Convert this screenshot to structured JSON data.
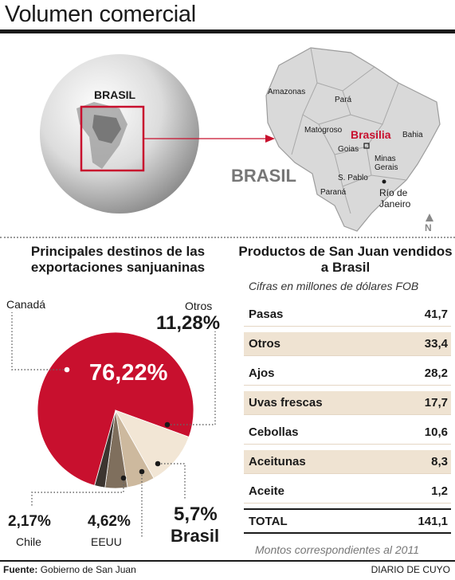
{
  "header": {
    "title": "Volumen comercial"
  },
  "map": {
    "globe_label": "BRASIL",
    "big_label": "BRASIL",
    "capital": "Brasilia",
    "regions": [
      "Amazonas",
      "Pará",
      "Matogroso",
      "Bahia",
      "Goias",
      "Minas Gerais",
      "S. Pablo",
      "Paraná"
    ],
    "city": [
      "Río de",
      "Janeiro"
    ],
    "north": "N",
    "accent": "#c8102e"
  },
  "chart_data": [
    {
      "type": "pie",
      "title": "Principales destinos de las exportaciones sanjuaninas",
      "slices": [
        {
          "name": "Canadá",
          "value": 76.22,
          "label": "76,22%",
          "color": "#c8102e"
        },
        {
          "name": "Otros",
          "value": 11.28,
          "label": "11,28%",
          "color": "#f2e6d5"
        },
        {
          "name": "Brasil",
          "value": 5.7,
          "label": "5,7%",
          "color": "#cdb99e"
        },
        {
          "name": "EEUU",
          "value": 4.62,
          "label": "4,62%",
          "color": "#7f6f5d"
        },
        {
          "name": "Chile",
          "value": 2.17,
          "label": "2,17%",
          "color": "#3c3530"
        }
      ]
    },
    {
      "type": "table",
      "title": "Productos de San Juan vendidos a Brasil",
      "subtitle": "Cifras en millones de dólares FOB",
      "rows": [
        {
          "name": "Pasas",
          "value": "41,7"
        },
        {
          "name": "Otros",
          "value": "33,4"
        },
        {
          "name": "Ajos",
          "value": "28,2"
        },
        {
          "name": "Uvas frescas",
          "value": "17,7"
        },
        {
          "name": "Cebollas",
          "value": "10,6"
        },
        {
          "name": "Aceitunas",
          "value": "8,3"
        },
        {
          "name": "Aceite",
          "value": "1,2"
        }
      ],
      "total": {
        "name": "TOTAL",
        "value": "141,1"
      },
      "note": "Montos correspondientes al 2011"
    }
  ],
  "footer": {
    "source_label": "Fuente:",
    "source": "Gobierno de San Juan",
    "brand": "DIARIO DE CUYO"
  }
}
